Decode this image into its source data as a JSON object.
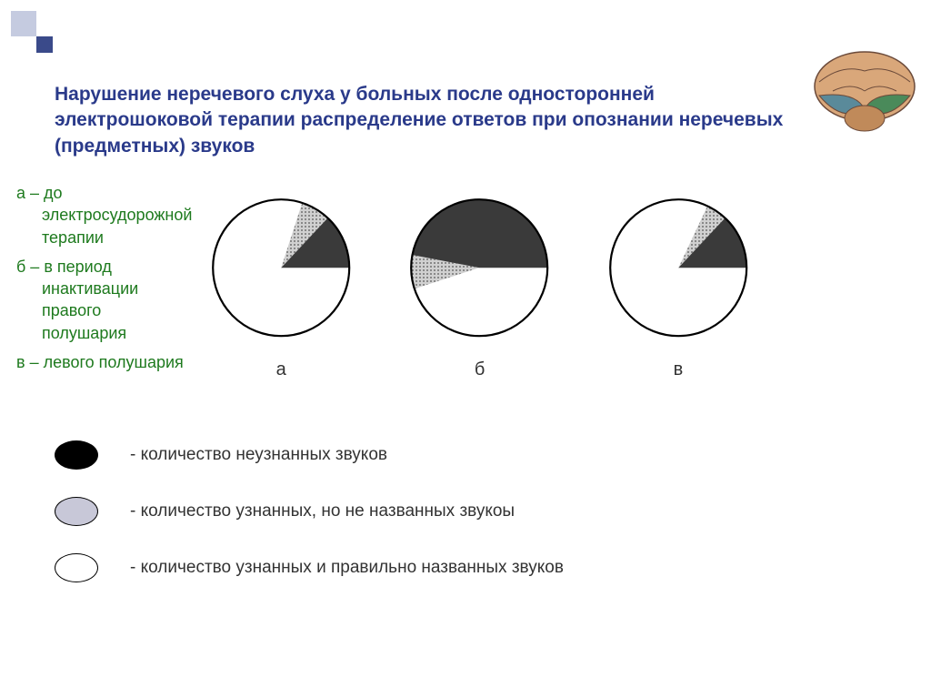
{
  "title": "Нарушение неречевого слуха у больных после односторонней электрошоковой терапии\nраспределение ответов при опознании неречевых (предметных) звуков",
  "conditions": [
    {
      "key": "a",
      "text": "а – до электросудорожной терапии"
    },
    {
      "key": "b",
      "text": "б – в период инактивации правого полушария"
    },
    {
      "key": "v",
      "text": "в – левого полушария"
    }
  ],
  "condition_color": "#1e7a1e",
  "charts": [
    {
      "label": "а",
      "slices": [
        {
          "color": "#ffffff",
          "pattern": "none",
          "value": 80
        },
        {
          "color": "#b8b8b8",
          "pattern": "dots",
          "value": 7
        },
        {
          "color": "#3a3a3a",
          "pattern": "none",
          "value": 13
        }
      ]
    },
    {
      "label": "б",
      "slices": [
        {
          "color": "#ffffff",
          "pattern": "none",
          "value": 45
        },
        {
          "color": "#b8b8b8",
          "pattern": "dots",
          "value": 8
        },
        {
          "color": "#3a3a3a",
          "pattern": "none",
          "value": 47
        }
      ]
    },
    {
      "label": "в",
      "slices": [
        {
          "color": "#ffffff",
          "pattern": "none",
          "value": 82
        },
        {
          "color": "#b8b8b8",
          "pattern": "dots",
          "value": 5
        },
        {
          "color": "#3a3a3a",
          "pattern": "none",
          "value": 13
        }
      ]
    }
  ],
  "chart_style": {
    "radius": 75,
    "stroke": "#000000",
    "stroke_width": 2.2,
    "background": "#ffffff",
    "start_angle_deg": 90
  },
  "legend": [
    {
      "fill": "#000000",
      "pattern": "none",
      "text": "- количество неузнанных звуков"
    },
    {
      "fill": "#c8c8d8",
      "pattern": "none",
      "text": "- количество узнанных, но не названных звукоы"
    },
    {
      "fill": "#ffffff",
      "pattern": "none",
      "text": "- количество узнанных и правильно названных звуков"
    }
  ],
  "brain_colors": {
    "outline": "#6b4a3a",
    "top": "#d9a77a",
    "bottom_left": "#5a8a9a",
    "bottom_right": "#4a8a5a",
    "cerebellum": "#c08a5a"
  }
}
